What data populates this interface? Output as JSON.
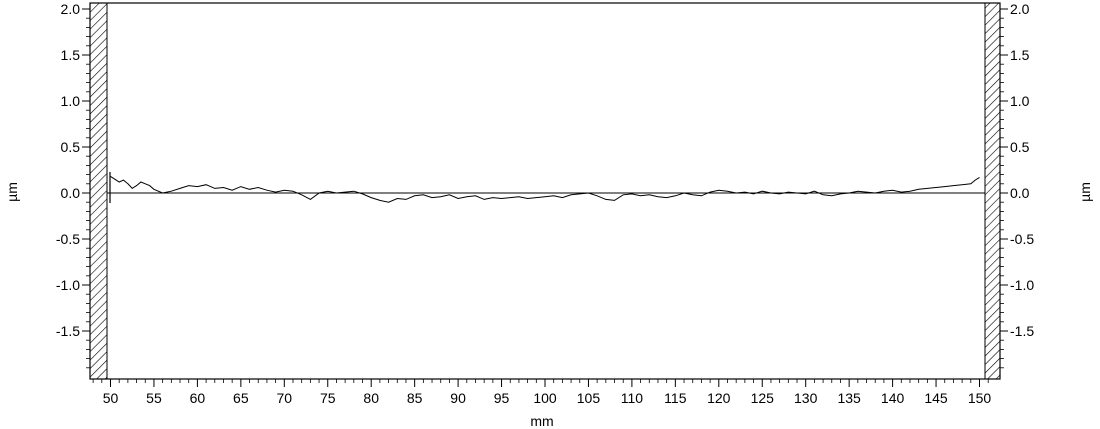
{
  "chart_data": {
    "type": "line",
    "title": "",
    "xlabel": "mm",
    "ylabel_left": "µm",
    "ylabel_right": "µm",
    "xlim": [
      48,
      151
    ],
    "ylim": [
      -2.0,
      2.0
    ],
    "x_ticks": [
      50,
      55,
      60,
      65,
      70,
      75,
      80,
      85,
      90,
      95,
      100,
      105,
      110,
      115,
      120,
      125,
      130,
      135,
      140,
      145,
      150
    ],
    "x_tick_labels": [
      "50",
      "55",
      "60",
      "65",
      "70",
      "75",
      "80",
      "85",
      "90",
      "95",
      "100",
      "105",
      "110",
      "115",
      "120",
      "125",
      "130",
      "135",
      "140",
      "145",
      "150"
    ],
    "y_ticks": [
      2.0,
      1.5,
      1.0,
      0.5,
      0.0,
      -0.5,
      -1.0,
      -1.5
    ],
    "y_tick_labels": [
      "2.0",
      "1.5",
      "1.0",
      "0.5",
      "0.0",
      "-0.5",
      "-1.0",
      "-1.5"
    ],
    "grid": false,
    "reference_line_y": 0.0,
    "series": [
      {
        "x": [
          50,
          50.5,
          51,
          51.5,
          52,
          52.5,
          53,
          53.5,
          54,
          54.5,
          55,
          56,
          57,
          58,
          59,
          60,
          61,
          62,
          63,
          64,
          65,
          66,
          67,
          68,
          69,
          70,
          71,
          72,
          73,
          74,
          75,
          76,
          77,
          78,
          79,
          80,
          81,
          82,
          83,
          84,
          85,
          86,
          87,
          88,
          89,
          90,
          91,
          92,
          93,
          94,
          95,
          96,
          97,
          98,
          99,
          100,
          101,
          102,
          103,
          104,
          105,
          106,
          107,
          108,
          109,
          110,
          111,
          112,
          113,
          114,
          115,
          116,
          117,
          118,
          119,
          120,
          121,
          122,
          123,
          124,
          125,
          126,
          127,
          128,
          129,
          130,
          131,
          132,
          133,
          134,
          135,
          136,
          137,
          138,
          139,
          140,
          141,
          142,
          143,
          144,
          145,
          146,
          147,
          148,
          149,
          149.5,
          150
        ],
        "y": [
          0.18,
          0.15,
          0.12,
          0.14,
          0.1,
          0.05,
          0.08,
          0.12,
          0.1,
          0.08,
          0.04,
          0.0,
          0.02,
          0.05,
          0.08,
          0.07,
          0.09,
          0.05,
          0.06,
          0.03,
          0.07,
          0.04,
          0.06,
          0.03,
          0.01,
          0.03,
          0.02,
          -0.02,
          -0.07,
          0.0,
          0.02,
          0.0,
          0.01,
          0.02,
          -0.01,
          -0.05,
          -0.08,
          -0.1,
          -0.06,
          -0.07,
          -0.03,
          -0.02,
          -0.05,
          -0.04,
          -0.02,
          -0.06,
          -0.04,
          -0.03,
          -0.07,
          -0.05,
          -0.06,
          -0.05,
          -0.04,
          -0.06,
          -0.05,
          -0.04,
          -0.03,
          -0.05,
          -0.02,
          -0.01,
          0.0,
          -0.03,
          -0.07,
          -0.08,
          -0.02,
          -0.01,
          -0.03,
          -0.02,
          -0.04,
          -0.05,
          -0.03,
          0.0,
          -0.02,
          -0.03,
          0.01,
          0.03,
          0.02,
          0.0,
          0.01,
          -0.01,
          0.02,
          0.0,
          -0.01,
          0.01,
          0.0,
          -0.01,
          0.02,
          -0.02,
          -0.03,
          -0.01,
          0.0,
          0.02,
          0.01,
          0.0,
          0.02,
          0.03,
          0.01,
          0.02,
          0.04,
          0.05,
          0.06,
          0.07,
          0.08,
          0.09,
          0.1,
          0.14,
          0.17
        ]
      }
    ]
  }
}
